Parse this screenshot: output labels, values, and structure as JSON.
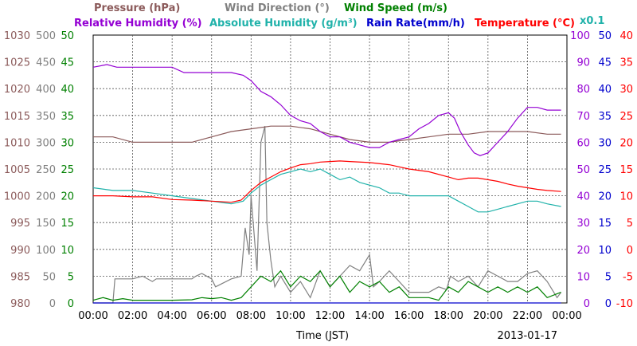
{
  "chart_data": {
    "type": "line",
    "date": "2013-01-17",
    "xlabel": "Time (JST)",
    "x_ticks": [
      "00:00",
      "02:00",
      "04:00",
      "06:00",
      "08:00",
      "10:00",
      "12:00",
      "14:00",
      "16:00",
      "18:00",
      "20:00",
      "22:00",
      "00:00"
    ],
    "xlim_hours": [
      0,
      24
    ],
    "grid": true,
    "left_axes": [
      {
        "name": "Pressure (hPa)",
        "color": "#8b5a5a",
        "min": 980,
        "max": 1030,
        "ticks": [
          "1030",
          "1025",
          "1020",
          "1015",
          "1010",
          "1005",
          "1000",
          "995",
          "990",
          "985",
          "980"
        ]
      },
      {
        "name": "Wind Direction (°)",
        "color": "#808080",
        "ticks": [
          "500",
          "450",
          "400",
          "350",
          "300",
          "250",
          "200",
          "150",
          "100",
          "50",
          "0"
        ]
      },
      {
        "name": "Wind Speed (m/s)",
        "color": "#008000",
        "ticks": [
          "50",
          "45",
          "40",
          "35",
          "30",
          "25",
          "20",
          "15",
          "10",
          "5",
          "0"
        ]
      }
    ],
    "right_axes": [
      {
        "name": "Relative Humidity (%)",
        "color": "#9400d3",
        "min": 0,
        "max": 100,
        "ticks": [
          "100",
          "90",
          "80",
          "70",
          "60",
          "50",
          "40",
          "30",
          "20",
          "10",
          "0"
        ]
      },
      {
        "name": "Absolute Humidity (g/m³)",
        "color": "#20b2aa",
        "ticks": [
          "50",
          "45",
          "40",
          "35",
          "30",
          "25",
          "20",
          "15",
          "10",
          "5",
          "0"
        ]
      },
      {
        "name": "Rain Rate(mm/h)",
        "color": "#0000cd",
        "ticks": [
          "50",
          "45",
          "40",
          "35",
          "30",
          "25",
          "20",
          "15",
          "10",
          "5",
          "0"
        ]
      },
      {
        "name": "Temperature (°C)",
        "color": "#ff0000",
        "min": -10,
        "max": 40,
        "ticks": [
          "40",
          "35",
          "30",
          "25",
          "20",
          "15",
          "10",
          "5",
          "0",
          "-5",
          "-10"
        ]
      }
    ],
    "scale_note": "x0.1",
    "series": [
      {
        "name": "Relative Humidity (%)",
        "color": "#9400d3",
        "unit_min": 0,
        "unit_max": 100,
        "x": [
          0,
          0.7,
          1.2,
          2,
          3,
          4,
          4.6,
          5,
          6,
          7,
          7.6,
          8,
          8.5,
          9,
          9.5,
          10,
          10.5,
          11,
          11.5,
          12,
          12.5,
          13,
          13.5,
          14,
          14.5,
          15,
          15.5,
          16,
          16.5,
          17,
          17.5,
          18,
          18.3,
          18.6,
          19,
          19.3,
          19.6,
          20,
          20.5,
          21,
          21.5,
          22,
          22.5,
          23,
          23.7
        ],
        "y": [
          88,
          89,
          88,
          88,
          88,
          88,
          86,
          86,
          86,
          86,
          85,
          83,
          79,
          77,
          74,
          70,
          68,
          67,
          64,
          62,
          62,
          60,
          59,
          58,
          58,
          60,
          61,
          62,
          65,
          67,
          70,
          71,
          69,
          64,
          59,
          56,
          55,
          56,
          60,
          64,
          69,
          73,
          73,
          72,
          72
        ]
      },
      {
        "name": "Pressure (hPa)",
        "color": "#8b5a5a",
        "unit_min": 980,
        "unit_max": 1030,
        "x": [
          0,
          1,
          2,
          3,
          4,
          5,
          6,
          7,
          8,
          9,
          10,
          11,
          12,
          13,
          14,
          15,
          16,
          17,
          18,
          19,
          20,
          21,
          22,
          23,
          23.7
        ],
        "y": [
          1011,
          1011,
          1010,
          1010,
          1010,
          1010,
          1011,
          1012,
          1012.5,
          1013,
          1013,
          1012.5,
          1011.5,
          1010.5,
          1010,
          1010,
          1010.5,
          1011,
          1011.5,
          1011.5,
          1012,
          1012,
          1012,
          1011.5,
          1011.5
        ]
      },
      {
        "name": "Absolute Humidity (g/m³)",
        "color": "#20b2aa",
        "unit_min": 0,
        "unit_max": 50,
        "x": [
          0,
          1,
          2,
          3,
          4,
          5,
          6,
          7,
          7.6,
          8,
          8.5,
          9,
          9.5,
          10,
          10.5,
          11,
          11.5,
          12,
          12.5,
          13,
          13.5,
          14,
          14.5,
          15,
          15.5,
          16,
          17,
          18,
          18.5,
          19,
          19.5,
          20,
          20.5,
          21,
          21.5,
          22,
          22.5,
          23,
          23.7
        ],
        "y": [
          21.5,
          21,
          21,
          20.5,
          20,
          19.5,
          19,
          18.5,
          19,
          20.5,
          22,
          23,
          24,
          24.5,
          25,
          24.5,
          25,
          24,
          23,
          23.5,
          22.5,
          22,
          21.5,
          20.5,
          20.5,
          20,
          20,
          20,
          19,
          18,
          17,
          17,
          17.5,
          18,
          18.5,
          19,
          19,
          18.5,
          18
        ]
      },
      {
        "name": "Temperature (°C)",
        "color": "#ff0000",
        "unit_min": -10,
        "unit_max": 40,
        "x": [
          0,
          1,
          2,
          3,
          4,
          5,
          6,
          7,
          7.5,
          8,
          8.5,
          9,
          9.5,
          10,
          10.5,
          11,
          11.5,
          12,
          12.5,
          13,
          14,
          15,
          16,
          17,
          18,
          18.5,
          19,
          19.5,
          20,
          20.5,
          21,
          21.5,
          22,
          22.5,
          23,
          23.7
        ],
        "y": [
          10,
          10,
          9.8,
          9.8,
          9.3,
          9.2,
          9,
          8.8,
          9.2,
          11,
          12.5,
          13.5,
          14.5,
          15.2,
          15.8,
          16,
          16.3,
          16.4,
          16.5,
          16.4,
          16.2,
          15.8,
          15,
          14.5,
          13.5,
          13,
          13.3,
          13.3,
          13,
          12.7,
          12.2,
          11.8,
          11.5,
          11.2,
          11,
          10.8
        ]
      },
      {
        "name": "Wind Direction (°)",
        "color": "#808080",
        "unit_min": 0,
        "unit_max": 500,
        "x": [
          0,
          1,
          1.1,
          2,
          2.5,
          3,
          3.2,
          4,
          5,
          5.2,
          5.5,
          6,
          6.2,
          7,
          7.5,
          7.7,
          7.9,
          8,
          8.3,
          8.5,
          8.7,
          8.8,
          9,
          9.2,
          9.5,
          10,
          10.5,
          11,
          11.5,
          12,
          12.5,
          13,
          13.5,
          14,
          14.2,
          14.5,
          15,
          15.5,
          16,
          17,
          17.5,
          17.9,
          18.1,
          18.5,
          19,
          19.5,
          20,
          20.5,
          21,
          21.5,
          22,
          22.5,
          23,
          23.5,
          23.7
        ],
        "y": [
          0,
          0,
          45,
          45,
          50,
          40,
          45,
          45,
          45,
          50,
          55,
          45,
          30,
          45,
          50,
          140,
          90,
          200,
          60,
          300,
          330,
          150,
          80,
          30,
          50,
          20,
          40,
          10,
          60,
          30,
          50,
          70,
          60,
          90,
          30,
          40,
          60,
          40,
          20,
          20,
          30,
          25,
          50,
          40,
          50,
          30,
          60,
          50,
          40,
          40,
          55,
          60,
          40,
          10,
          20
        ]
      },
      {
        "name": "Wind Speed (m/s)",
        "color": "#008000",
        "unit_min": 0,
        "unit_max": 50,
        "x": [
          0,
          0.5,
          1,
          1.5,
          2,
          3,
          4,
          5,
          5.5,
          6,
          6.5,
          7,
          7.5,
          8,
          8.5,
          9,
          9.5,
          10,
          10.5,
          11,
          11.5,
          12,
          12.5,
          13,
          13.5,
          14,
          14.5,
          15,
          15.5,
          16,
          17,
          17.5,
          18,
          18.5,
          19,
          19.5,
          20,
          20.5,
          21,
          21.5,
          22,
          22.5,
          23,
          23.7
        ],
        "y": [
          0.5,
          1,
          0.5,
          0.8,
          0.5,
          0.5,
          0.5,
          0.6,
          1,
          0.8,
          1,
          0.5,
          1,
          3,
          5,
          4,
          6,
          3,
          5,
          4,
          6,
          3,
          5,
          2,
          4,
          3,
          4,
          2,
          3,
          1,
          1,
          0.5,
          3,
          2,
          4,
          3,
          2,
          3,
          2,
          3,
          2,
          3,
          1,
          2
        ]
      },
      {
        "name": "Rain Rate(mm/h)",
        "color": "#0000cd",
        "unit_min": 0,
        "unit_max": 50,
        "x": [
          0,
          23.7
        ],
        "y": [
          0,
          0
        ]
      }
    ]
  }
}
